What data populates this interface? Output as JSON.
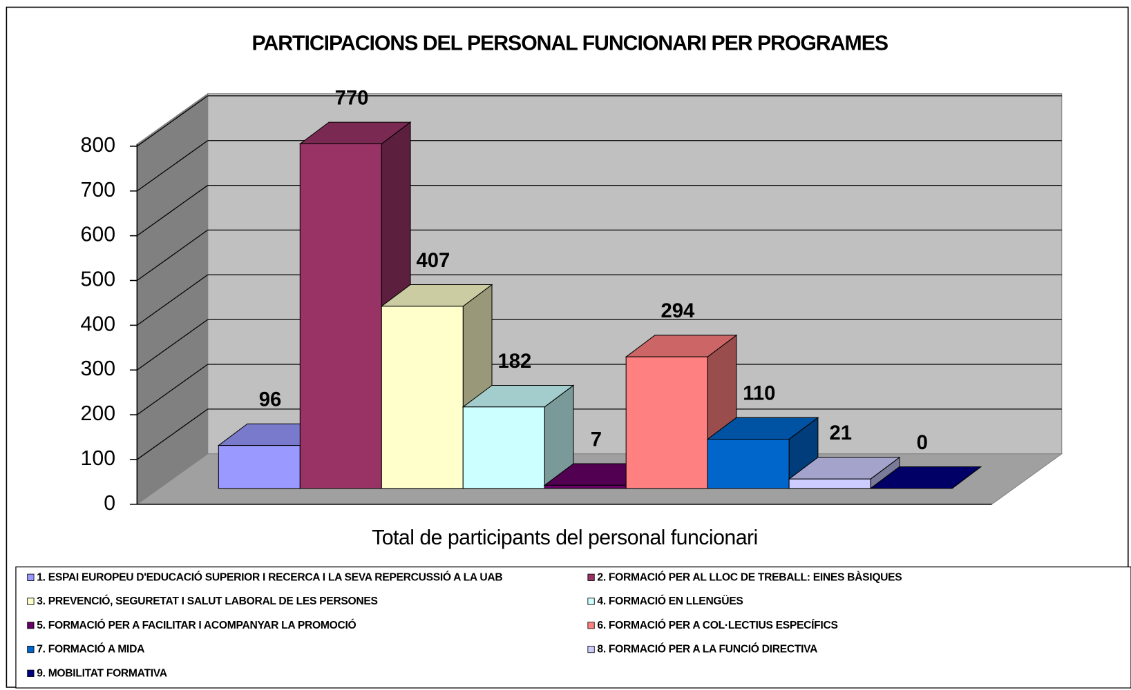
{
  "chart_data": {
    "type": "bar",
    "title": "PARTICIPACIONS DEL PERSONAL FUNCIONARI PER PROGRAMES",
    "x_label": "Total de participants del personal funcionari",
    "ylim": [
      0,
      800
    ],
    "yticks": [
      0,
      100,
      200,
      300,
      400,
      500,
      600,
      700,
      800
    ],
    "grid": true,
    "legend": "bottom",
    "series": [
      {
        "name": "1. ESPAI EUROPEU D'EDUCACIÓ SUPERIOR I RECERCA I LA SEVA REPERCUSSIÓ A LA UAB",
        "color": "#9999ff",
        "values": [
          96
        ]
      },
      {
        "name": "2. FORMACIÓ PER AL LLOC DE TREBALL: EINES BÀSIQUES",
        "color": "#993366",
        "values": [
          770
        ]
      },
      {
        "name": "3. PREVENCIÓ, SEGURETAT I SALUT LABORAL DE LES PERSONES",
        "color": "#ffffcc",
        "values": [
          407
        ]
      },
      {
        "name": "4. FORMACIÓ EN LLENGÜES",
        "color": "#ccffff",
        "values": [
          182
        ]
      },
      {
        "name": "5. FORMACIÓ PER A FACILITAR I ACOMPANYAR LA PROMOCIÓ",
        "color": "#660066",
        "values": [
          7
        ]
      },
      {
        "name": "6. FORMACIÓ PER A COL·LECTIUS ESPECÍFICS",
        "color": "#ff8080",
        "values": [
          294
        ]
      },
      {
        "name": "7. FORMACIÓ A MIDA",
        "color": "#0066cc",
        "values": [
          110
        ]
      },
      {
        "name": "8. FORMACIÓ PER A LA FUNCIÓ DIRECTIVA",
        "color": "#ccccff",
        "values": [
          21
        ]
      },
      {
        "name": "9. MOBILITAT FORMATIVA",
        "color": "#000080",
        "values": [
          0
        ]
      }
    ]
  }
}
